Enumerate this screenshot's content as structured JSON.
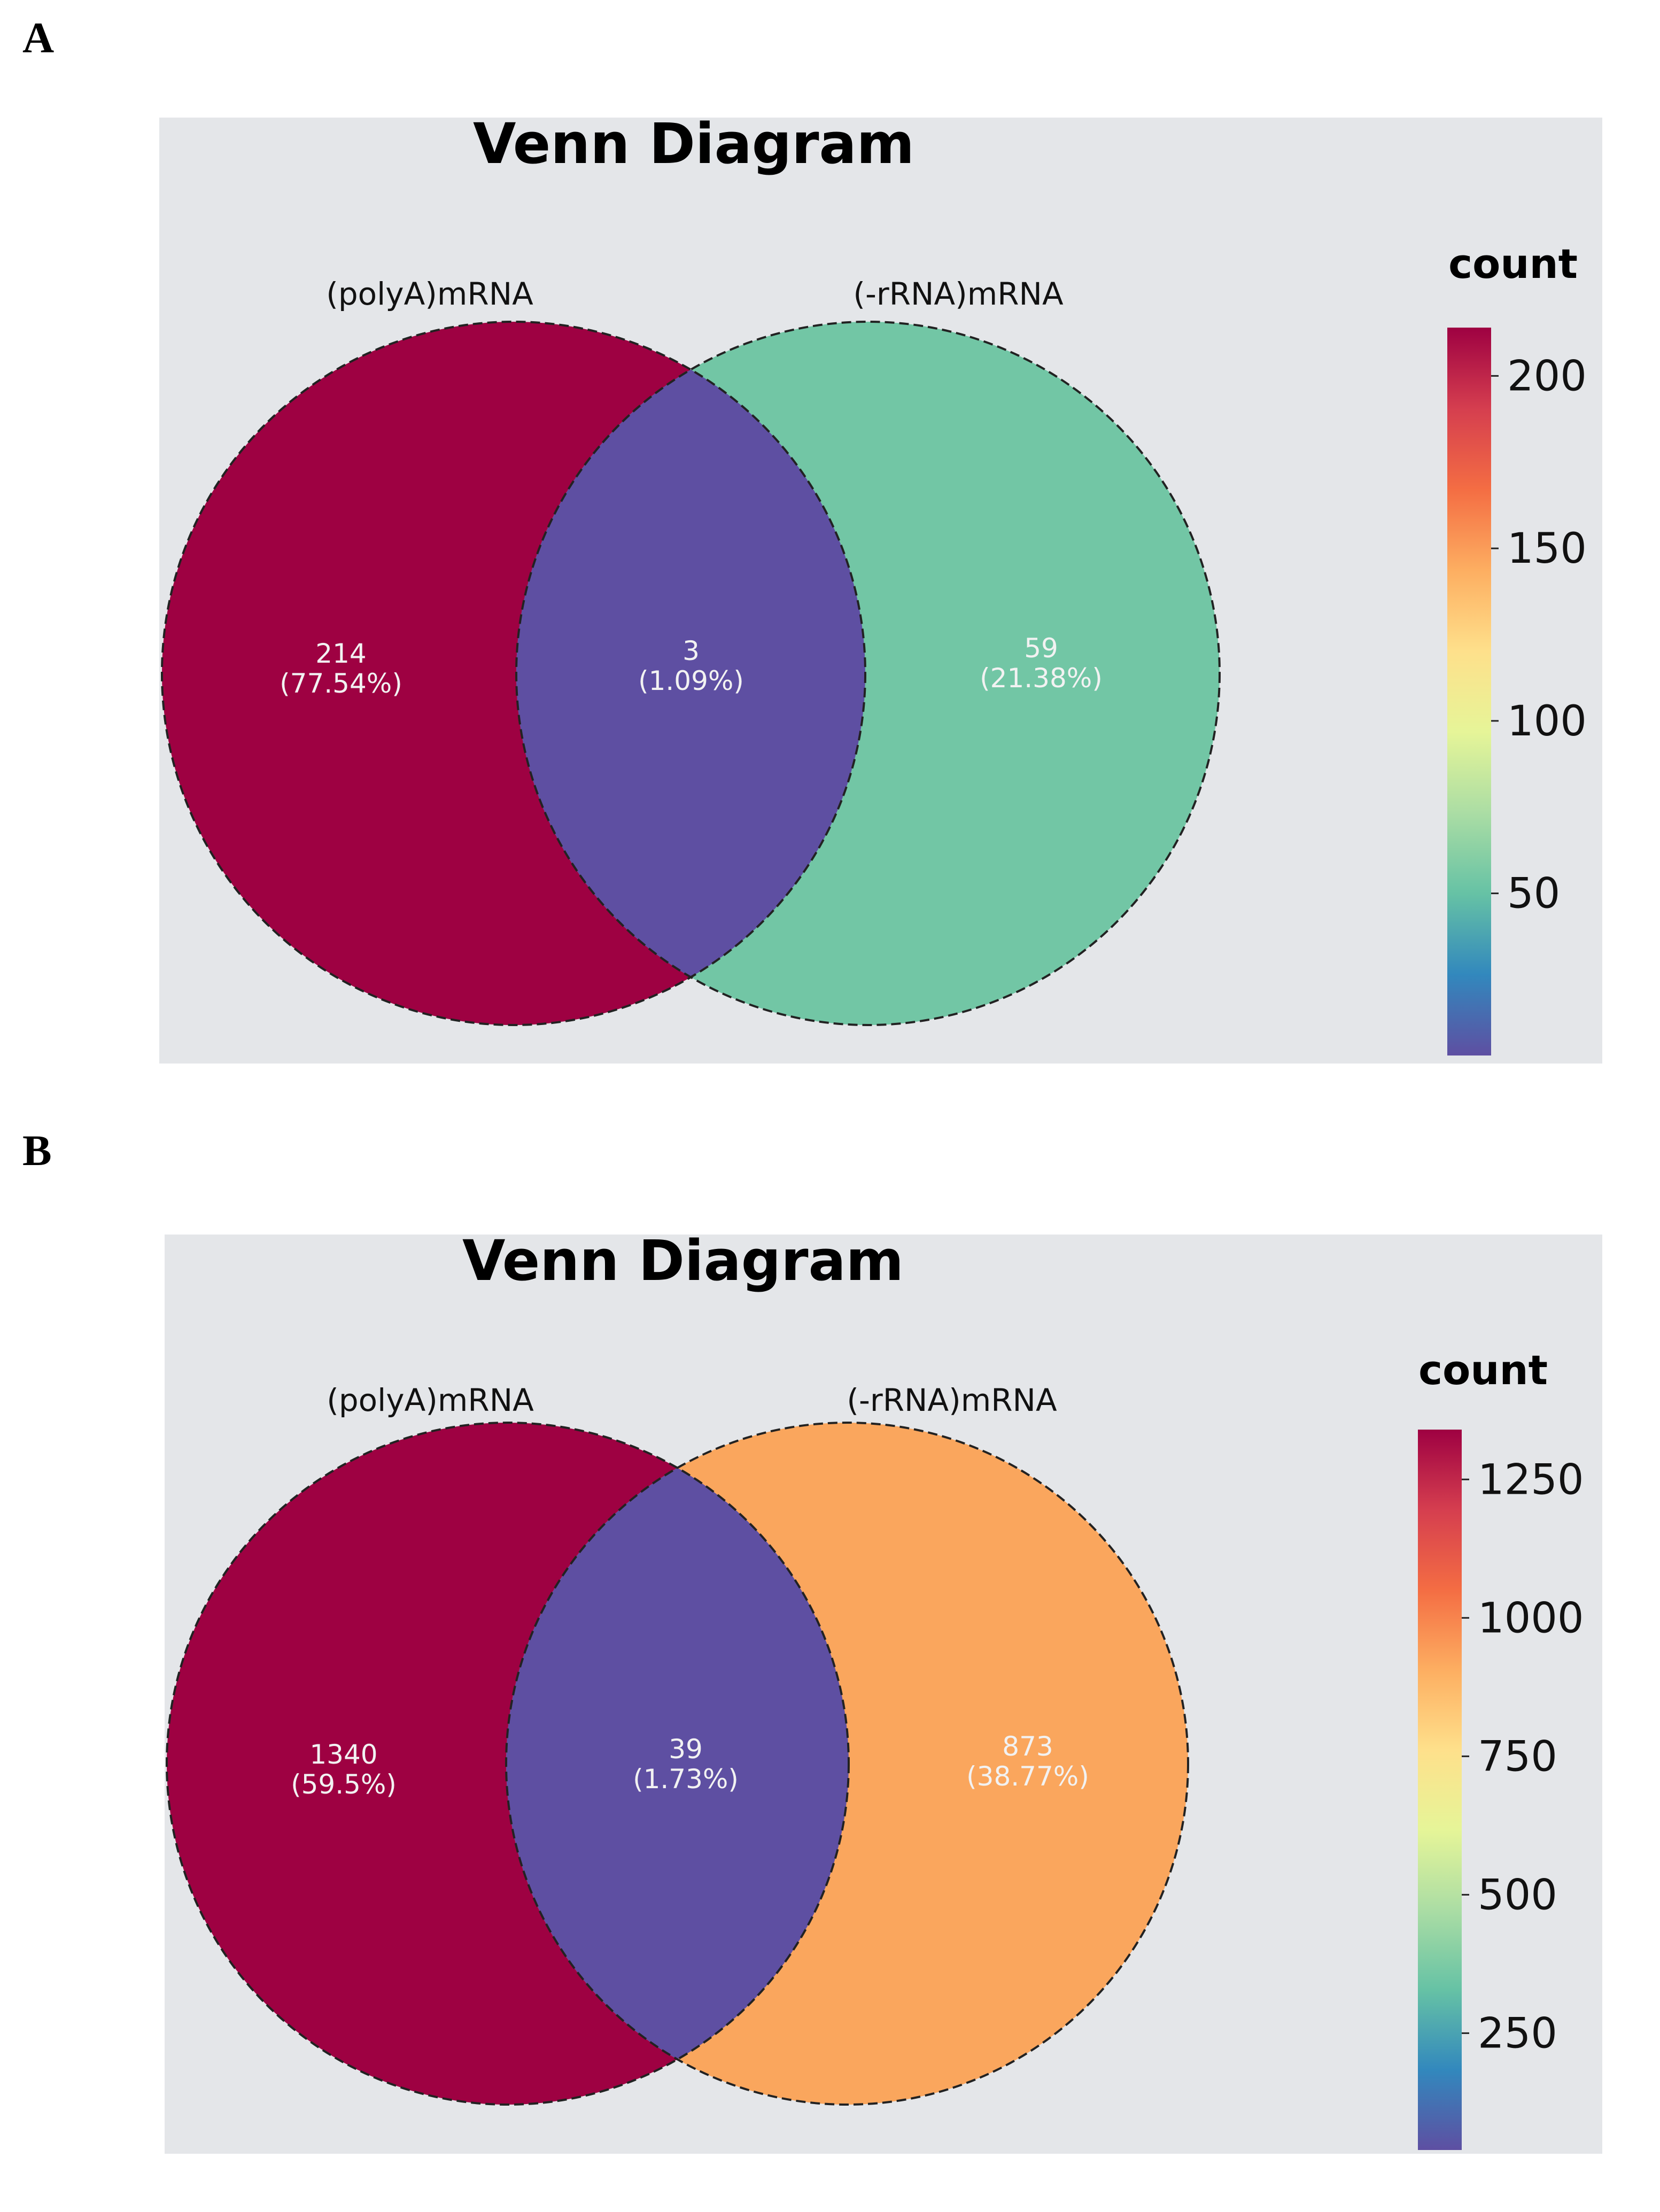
{
  "figure": {
    "panel_a_letter": "A",
    "panel_b_letter": "B"
  },
  "chart_data": [
    {
      "type": "venn",
      "panel": "A",
      "title": "Venn Diagram",
      "sets": [
        "(polyA)mRNA",
        "(-rRNA)mRNA"
      ],
      "regions": [
        {
          "name": "(polyA)mRNA only",
          "count": 214,
          "label": "214",
          "percent_label": "(77.54%)",
          "color": "#9e0142"
        },
        {
          "name": "intersection",
          "count": 3,
          "label": "3",
          "percent_label": "(1.09%)",
          "color": "#5e4fa2"
        },
        {
          "name": "(-rRNA)mRNA only",
          "count": 59,
          "label": "59",
          "percent_label": "(21.38%)",
          "color": "#72c6a5"
        }
      ],
      "colorbar": {
        "title": "count",
        "min": 3,
        "max": 214,
        "ticks": [
          50,
          100,
          150,
          200
        ],
        "tick_labels": [
          "50",
          "100",
          "150",
          "200"
        ],
        "colormap": "Spectral_r",
        "stops": [
          "#5e4fa2",
          "#3288bd",
          "#66c2a5",
          "#abdda4",
          "#e6f598",
          "#fee08b",
          "#fdae61",
          "#f46d43",
          "#d53e4f",
          "#9e0142"
        ]
      }
    },
    {
      "type": "venn",
      "panel": "B",
      "title": "Venn Diagram",
      "sets": [
        "(polyA)mRNA",
        "(-rRNA)mRNA"
      ],
      "regions": [
        {
          "name": "(polyA)mRNA only",
          "count": 1340,
          "label": "1340",
          "percent_label": "(59.5%)",
          "color": "#9e0142"
        },
        {
          "name": "intersection",
          "count": 39,
          "label": "39",
          "percent_label": "(1.73%)",
          "color": "#5e4fa2"
        },
        {
          "name": "(-rRNA)mRNA only",
          "count": 873,
          "label": "873",
          "percent_label": "(38.77%)",
          "color": "#faa65d"
        }
      ],
      "colorbar": {
        "title": "count",
        "min": 39,
        "max": 1340,
        "ticks": [
          250,
          500,
          750,
          1000,
          1250
        ],
        "tick_labels": [
          "250",
          "500",
          "750",
          "1000",
          "1250"
        ],
        "colormap": "Spectral_r",
        "stops": [
          "#5e4fa2",
          "#3288bd",
          "#66c2a5",
          "#abdda4",
          "#e6f598",
          "#fee08b",
          "#fdae61",
          "#f46d43",
          "#d53e4f",
          "#9e0142"
        ]
      }
    }
  ]
}
